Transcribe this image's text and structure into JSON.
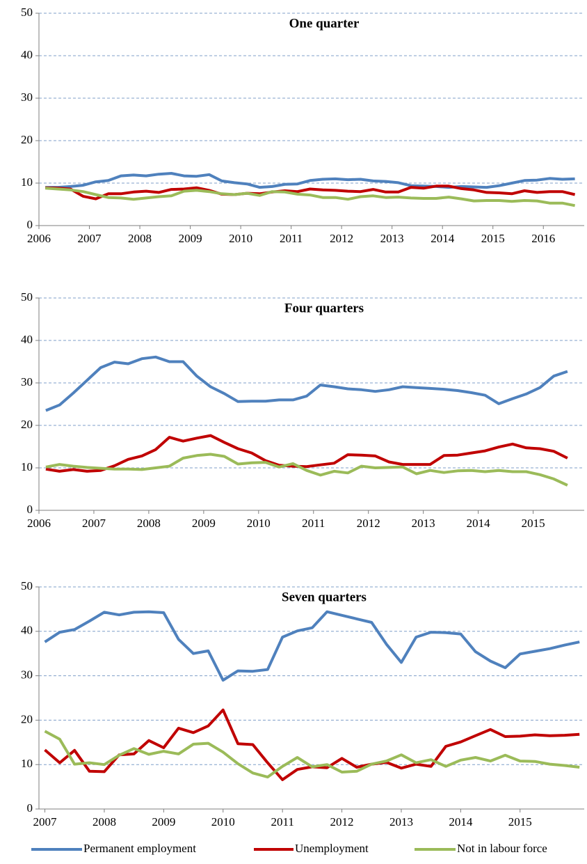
{
  "chart_data": [
    {
      "type": "line",
      "title": "One quarter",
      "x": [
        2006.125,
        2006.375,
        2006.625,
        2006.875,
        2007.125,
        2007.375,
        2007.625,
        2007.875,
        2008.125,
        2008.375,
        2008.625,
        2008.875,
        2009.125,
        2009.375,
        2009.625,
        2009.875,
        2010.125,
        2010.375,
        2010.625,
        2010.875,
        2011.125,
        2011.375,
        2011.625,
        2011.875,
        2012.125,
        2012.375,
        2012.625,
        2012.875,
        2013.125,
        2013.375,
        2013.625,
        2013.875,
        2014.125,
        2014.375,
        2014.625,
        2014.875,
        2015.125,
        2015.375,
        2015.625,
        2015.875,
        2016.125,
        2016.375,
        2016.625
      ],
      "xlim": [
        2006,
        2016.81
      ],
      "xticks": [
        2006,
        2007,
        2008,
        2009,
        2010,
        2011,
        2012,
        2013,
        2014,
        2015,
        2016
      ],
      "ylim": [
        0,
        50
      ],
      "yticks": [
        0,
        10,
        20,
        30,
        40,
        50
      ],
      "grid": true,
      "series": [
        {
          "color": "#4f81bd",
          "values": [
            9,
            9,
            9.2,
            9.5,
            10.3,
            10.6,
            11.7,
            11.9,
            11.7,
            12.1,
            12.3,
            11.7,
            11.6,
            12.0,
            10.5,
            10.1,
            9.8,
            9.0,
            9.2,
            9.7,
            9.8,
            10.6,
            10.9,
            11.0,
            10.8,
            10.9,
            10.5,
            10.4,
            10.1,
            9.4,
            9.3,
            9.2,
            9.0,
            9.2,
            9.1,
            9.0,
            9.4,
            10.0,
            10.6,
            10.7,
            11.1,
            10.9,
            11.0
          ]
        },
        {
          "color": "#c00000",
          "values": [
            8.9,
            8.8,
            8.6,
            6.9,
            6.3,
            7.5,
            7.5,
            7.9,
            8.1,
            7.8,
            8.5,
            8.6,
            8.9,
            8.3,
            7.4,
            7.3,
            7.6,
            7.5,
            7.9,
            8.2,
            8.0,
            8.6,
            8.4,
            8.3,
            8.1,
            8.0,
            8.5,
            7.9,
            7.9,
            9.0,
            8.8,
            9.3,
            9.3,
            8.7,
            8.4,
            7.8,
            7.7,
            7.5,
            8.2,
            7.8,
            8.0,
            8.0,
            7.3
          ]
        },
        {
          "color": "#9bbb59",
          "values": [
            8.8,
            8.6,
            8.4,
            8.0,
            7.3,
            6.6,
            6.5,
            6.2,
            6.5,
            6.8,
            7.0,
            8.1,
            8.3,
            8.0,
            7.5,
            7.3,
            7.6,
            7.1,
            8.0,
            7.9,
            7.4,
            7.2,
            6.6,
            6.6,
            6.2,
            6.8,
            7.0,
            6.6,
            6.7,
            6.5,
            6.4,
            6.4,
            6.7,
            6.3,
            5.8,
            5.9,
            5.9,
            5.7,
            5.9,
            5.8,
            5.3,
            5.3,
            4.7
          ]
        }
      ]
    },
    {
      "type": "line",
      "title": "Four quarters",
      "x": [
        2006.125,
        2006.375,
        2006.625,
        2006.875,
        2007.125,
        2007.375,
        2007.625,
        2007.875,
        2008.125,
        2008.375,
        2008.625,
        2008.875,
        2009.125,
        2009.375,
        2009.625,
        2009.875,
        2010.125,
        2010.375,
        2010.625,
        2010.875,
        2011.125,
        2011.375,
        2011.625,
        2011.875,
        2012.125,
        2012.375,
        2012.625,
        2012.875,
        2013.125,
        2013.375,
        2013.625,
        2013.875,
        2014.125,
        2014.375,
        2014.625,
        2014.875,
        2015.125,
        2015.375,
        2015.625
      ],
      "xlim": [
        2006,
        2015.93
      ],
      "xticks": [
        2006,
        2007,
        2008,
        2009,
        2010,
        2011,
        2012,
        2013,
        2014,
        2015
      ],
      "ylim": [
        0,
        50
      ],
      "yticks": [
        0,
        10,
        20,
        30,
        40,
        50
      ],
      "grid": true,
      "series": [
        {
          "color": "#4f81bd",
          "values": [
            23.5,
            24.8,
            27.6,
            30.6,
            33.6,
            34.9,
            34.5,
            35.7,
            36.1,
            35.0,
            35.0,
            31.6,
            29.1,
            27.5,
            25.6,
            25.7,
            25.7,
            26.0,
            26.0,
            26.9,
            29.5,
            29.1,
            28.6,
            28.4,
            28.0,
            28.4,
            29.1,
            28.9,
            28.7,
            28.5,
            28.2,
            27.7,
            27.1,
            25.1,
            26.3,
            27.4,
            28.9,
            31.6,
            32.7
          ]
        },
        {
          "color": "#c00000",
          "values": [
            9.7,
            9.2,
            9.6,
            9.2,
            9.4,
            10.5,
            12.0,
            12.8,
            14.3,
            17.2,
            16.3,
            17.0,
            17.6,
            16.0,
            14.5,
            13.5,
            11.7,
            10.6,
            10.4,
            10.3,
            10.7,
            11.1,
            13.1,
            13.0,
            12.8,
            11.4,
            10.8,
            10.8,
            10.8,
            12.9,
            13.0,
            13.5,
            14.0,
            14.9,
            15.6,
            14.7,
            14.5,
            13.9,
            12.3
          ]
        },
        {
          "color": "#9bbb59",
          "values": [
            10.2,
            10.8,
            10.4,
            10.1,
            9.9,
            9.7,
            9.7,
            9.6,
            10.0,
            10.4,
            12.3,
            12.9,
            13.2,
            12.7,
            10.9,
            11.2,
            11.3,
            10.2,
            11.0,
            9.4,
            8.3,
            9.2,
            8.8,
            10.4,
            10.0,
            10.1,
            10.2,
            8.6,
            9.4,
            8.9,
            9.3,
            9.4,
            9.1,
            9.4,
            9.1,
            9.1,
            8.4,
            7.4,
            5.9
          ]
        }
      ]
    },
    {
      "type": "line",
      "title": "Seven quarters",
      "x": [
        2007,
        2007.25,
        2007.5,
        2007.75,
        2008,
        2008.25,
        2008.5,
        2008.75,
        2009,
        2009.25,
        2009.5,
        2009.75,
        2010,
        2010.25,
        2010.5,
        2010.75,
        2011,
        2011.25,
        2011.5,
        2011.75,
        2012,
        2012.25,
        2012.5,
        2012.75,
        2013,
        2013.25,
        2013.5,
        2013.75,
        2014,
        2014.25,
        2014.5,
        2014.75,
        2015,
        2015.25,
        2015.5,
        2015.75,
        2016
      ],
      "xlim": [
        2006.9,
        2016.08
      ],
      "xticks": [
        2007,
        2008,
        2009,
        2010,
        2011,
        2012,
        2013,
        2014,
        2015
      ],
      "ylim": [
        0,
        50
      ],
      "yticks": [
        0,
        10,
        20,
        30,
        40,
        50
      ],
      "grid": true,
      "series": [
        {
          "name": "Permanent employment",
          "color": "#4f81bd",
          "values": [
            37.6,
            39.8,
            40.4,
            42.3,
            44.3,
            43.7,
            44.3,
            44.4,
            44.2,
            38.2,
            35.0,
            35.6,
            29.0,
            31.1,
            31.0,
            31.4,
            38.7,
            40.1,
            40.8,
            44.4,
            43.6,
            42.8,
            42.0,
            37.1,
            33.0,
            38.7,
            39.8,
            39.7,
            39.4,
            35.4,
            33.3,
            31.8,
            34.9,
            35.5,
            36.1,
            36.9,
            37.6
          ]
        },
        {
          "name": "Unemployment",
          "color": "#c00000",
          "values": [
            13.3,
            10.4,
            13.2,
            8.5,
            8.4,
            12.2,
            12.4,
            15.4,
            13.8,
            18.2,
            17.2,
            18.7,
            22.3,
            14.7,
            14.5,
            10.4,
            6.6,
            8.9,
            9.5,
            9.3,
            11.4,
            9.4,
            10.1,
            10.5,
            9.2,
            10.1,
            9.6,
            14.1,
            15.1,
            16.5,
            17.9,
            16.3,
            16.4,
            16.7,
            16.5,
            16.6,
            16.8
          ]
        },
        {
          "name": "Not in labour force",
          "color": "#9bbb59",
          "values": [
            17.5,
            15.7,
            10.1,
            10.4,
            10.0,
            12.1,
            13.6,
            12.3,
            13.0,
            12.4,
            14.6,
            14.8,
            12.8,
            10.2,
            8.1,
            7.2,
            9.6,
            11.6,
            9.5,
            10.0,
            8.3,
            8.5,
            10.1,
            10.8,
            12.2,
            10.4,
            11.1,
            9.6,
            11.0,
            11.6,
            10.8,
            12.1,
            10.8,
            10.7,
            10.1,
            9.8,
            9.4
          ]
        }
      ]
    }
  ]
}
